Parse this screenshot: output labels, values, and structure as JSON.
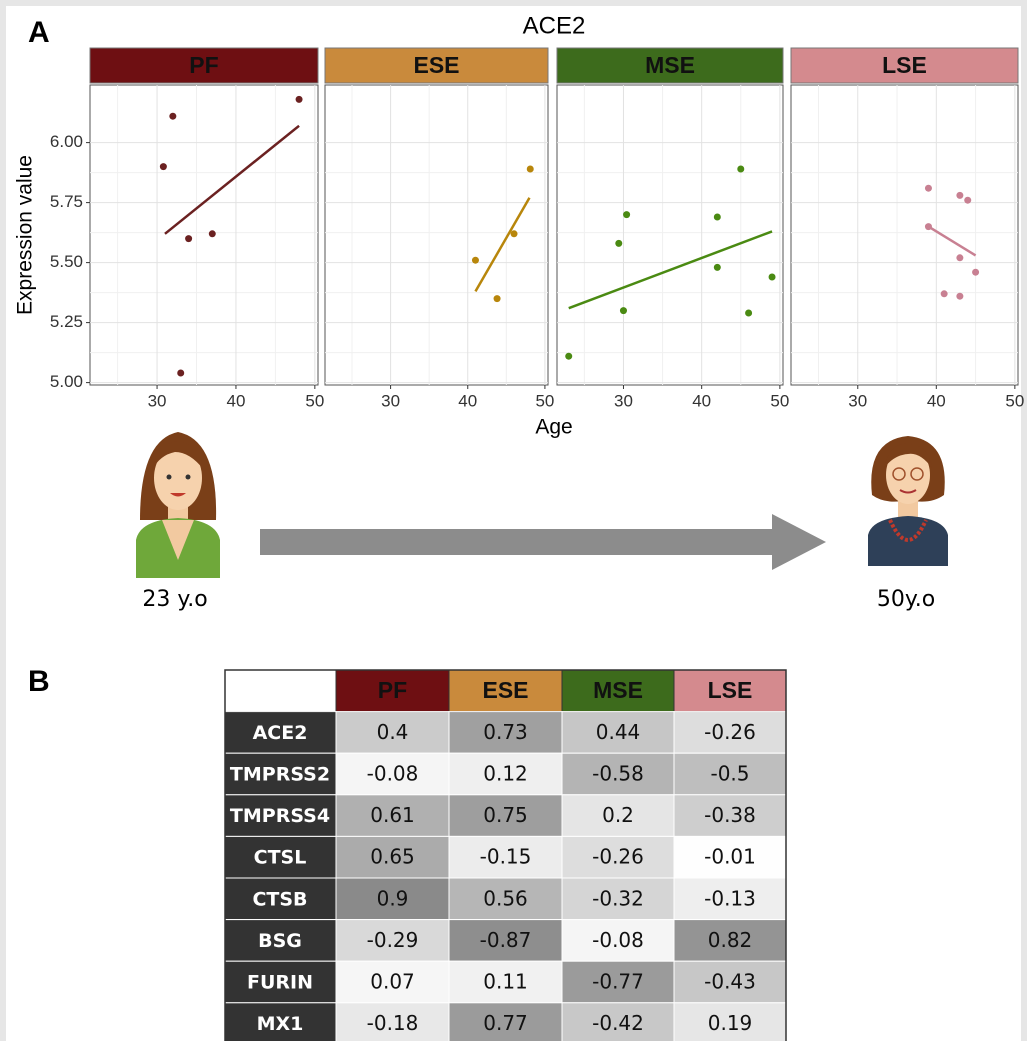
{
  "panel_labels": [
    "A",
    "B"
  ],
  "chart_data": {
    "type": "scatter",
    "title": "ACE2",
    "x_label": "Age",
    "y_label": "Expression value",
    "xlim": [
      21.5,
      50.4
    ],
    "xticks": [
      30,
      40,
      50
    ],
    "ylim": [
      4.99,
      6.24
    ],
    "yticks": [
      {
        "value": 5.0,
        "label": "5.00"
      },
      {
        "value": 5.25,
        "label": "5.25"
      },
      {
        "value": 5.5,
        "label": "5.50"
      },
      {
        "value": 5.75,
        "label": "5.75"
      },
      {
        "value": 6.0,
        "label": "6.00"
      }
    ],
    "grid": true,
    "facets": [
      {
        "name": "PF",
        "strip_color": "#6e0f12",
        "color": "#6b2121",
        "x": [
          30.8,
          32,
          33,
          34,
          37,
          48
        ],
        "values": [
          5.9,
          6.11,
          5.04,
          5.6,
          5.62,
          6.18
        ],
        "fit_x": [
          31,
          48
        ],
        "fit_values": [
          5.62,
          6.07
        ]
      },
      {
        "name": "ESE",
        "strip_color": "#c98a3c",
        "color": "#b8860b",
        "x": [
          41,
          43.8,
          46,
          48.1
        ],
        "values": [
          5.51,
          5.35,
          5.62,
          5.89
        ],
        "fit_x": [
          41,
          48
        ],
        "fit_values": [
          5.38,
          5.77
        ]
      },
      {
        "name": "MSE",
        "strip_color": "#3d6b1c",
        "color": "#4a8a12",
        "x": [
          23,
          30,
          30.4,
          29.4,
          42,
          42,
          45,
          46,
          49
        ],
        "values": [
          5.11,
          5.3,
          5.7,
          5.58,
          5.69,
          5.48,
          5.89,
          5.29,
          5.44
        ],
        "fit_x": [
          23,
          49
        ],
        "fit_values": [
          5.31,
          5.63
        ]
      },
      {
        "name": "LSE",
        "strip_color": "#d48a8e",
        "color": "#c88092",
        "x": [
          39,
          43,
          44,
          39,
          43,
          45,
          41,
          43
        ],
        "values": [
          5.81,
          5.78,
          5.76,
          5.65,
          5.52,
          5.46,
          5.37,
          5.36
        ],
        "fit_x": [
          39,
          45
        ],
        "fit_values": [
          5.65,
          5.53
        ]
      }
    ]
  },
  "timeline": {
    "start_label": "23 y.o",
    "end_label": "50y.o"
  },
  "table": {
    "columns": [
      "PF",
      "ESE",
      "MSE",
      "LSE"
    ],
    "rows": [
      {
        "gene": "ACE2",
        "values": [
          0.4,
          0.73,
          0.44,
          -0.26
        ]
      },
      {
        "gene": "TMPRSS2",
        "values": [
          -0.08,
          0.12,
          -0.58,
          -0.5
        ]
      },
      {
        "gene": "TMPRSS4",
        "values": [
          0.61,
          0.75,
          0.2,
          -0.38
        ]
      },
      {
        "gene": "CTSL",
        "values": [
          0.65,
          -0.15,
          -0.26,
          -0.01
        ]
      },
      {
        "gene": "CTSB",
        "values": [
          0.9,
          0.56,
          -0.32,
          -0.13
        ]
      },
      {
        "gene": "BSG",
        "values": [
          -0.29,
          -0.87,
          -0.08,
          0.82
        ]
      },
      {
        "gene": "FURIN",
        "values": [
          0.07,
          0.11,
          -0.77,
          -0.43
        ]
      },
      {
        "gene": "MX1",
        "values": [
          -0.18,
          0.77,
          -0.42,
          0.19
        ]
      }
    ]
  }
}
